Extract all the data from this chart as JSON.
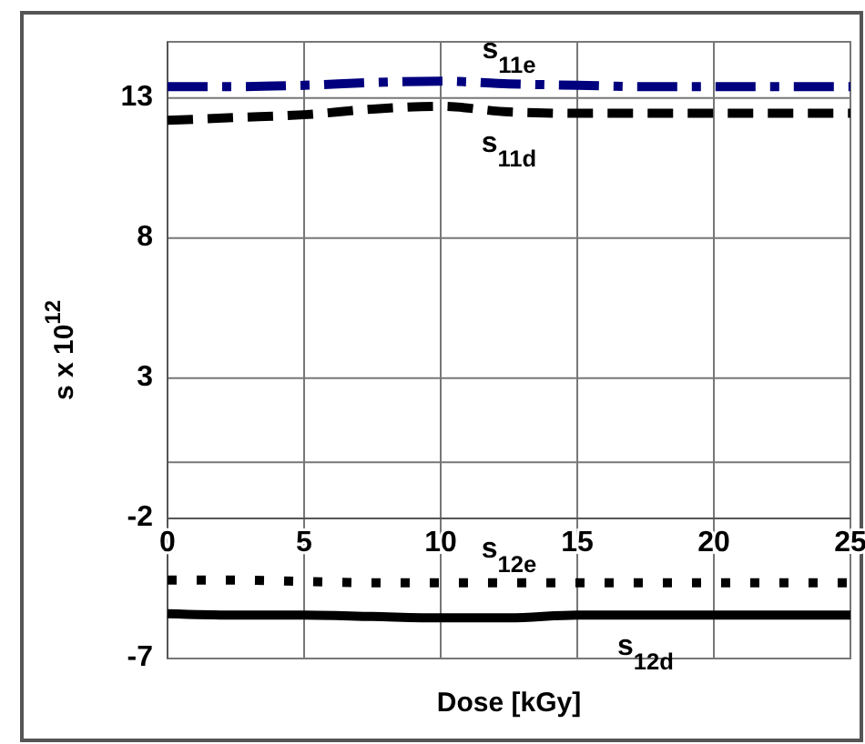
{
  "chart_data": {
    "type": "line",
    "xlabel": "Dose [kGy]",
    "ylabel": "s x 10$^{12}$",
    "x": [
      0,
      2.5,
      5,
      7.5,
      10,
      12.5,
      15,
      17.5,
      20,
      22.5,
      25
    ],
    "series": [
      {
        "name": "s$_{11e}$",
        "color": "#00007f",
        "line_style": "dashdot",
        "values": [
          13.4,
          13.4,
          13.45,
          13.55,
          13.6,
          13.5,
          13.45,
          13.4,
          13.4,
          13.4,
          13.4
        ]
      },
      {
        "name": "s$_{11d}$",
        "color": "#000000",
        "line_style": "dashed",
        "values": [
          12.2,
          12.3,
          12.4,
          12.6,
          12.7,
          12.5,
          12.45,
          12.45,
          12.45,
          12.45,
          12.45
        ]
      },
      {
        "name": "s$_{12e}$",
        "color": "#000000",
        "line_style": "dotted",
        "values": [
          -4.2,
          -4.2,
          -4.25,
          -4.3,
          -4.3,
          -4.3,
          -4.3,
          -4.3,
          -4.3,
          -4.3,
          -4.3
        ]
      },
      {
        "name": "s$_{12d}$",
        "color": "#000000",
        "line_style": "solid",
        "values": [
          -5.4,
          -5.45,
          -5.45,
          -5.5,
          -5.55,
          -5.55,
          -5.45,
          -5.45,
          -5.45,
          -5.45,
          -5.45
        ]
      }
    ],
    "xlim": [
      0,
      25
    ],
    "xticks": [
      0,
      5,
      10,
      15,
      20,
      25
    ],
    "ylim": [
      -7,
      15
    ],
    "yticks": [
      -7,
      -2,
      {
        "value": 0,
        "label": null
      },
      3,
      8,
      13
    ],
    "grid": true
  }
}
